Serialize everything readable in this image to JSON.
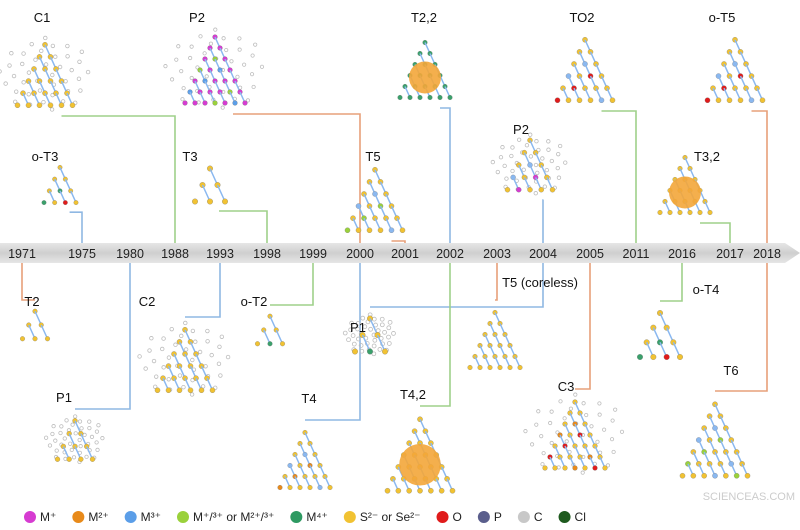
{
  "timeline": {
    "years": [
      "1971",
      "1975",
      "1980",
      "1988",
      "1993",
      "1998",
      "1999",
      "2000",
      "2001",
      "2002",
      "2003",
      "2004",
      "2005",
      "2011",
      "2016",
      "2017",
      "2018"
    ]
  },
  "clusters_above": [
    {
      "label": "C1",
      "year": "1988",
      "type": "C",
      "colors": [
        "#e88a1a",
        "#f1c232"
      ]
    },
    {
      "label": "P2",
      "year": "2000",
      "type": "P",
      "colors": [
        "#9ad13b",
        "#d63bd1",
        "#5b9ee8"
      ]
    },
    {
      "label": "T2,2",
      "year": "2002",
      "type": "Tcore",
      "colors": [
        "#f1c232",
        "#3aa06b"
      ]
    },
    {
      "label": "TO2",
      "year": "2011",
      "type": "T",
      "colors": [
        "#8ab8f0",
        "#f1c232",
        "#e01b1b"
      ]
    },
    {
      "label": "o-T5",
      "year": "2018",
      "type": "T",
      "colors": [
        "#8ab8f0",
        "#f1c232",
        "#e01b1b"
      ]
    },
    {
      "label": "o-T3",
      "year": "1975",
      "type": "T",
      "colors": [
        "#3aa06b",
        "#f1c232",
        "#e01b1b"
      ]
    },
    {
      "label": "T3",
      "year": "1998",
      "type": "T",
      "colors": [
        "#8ab8f0",
        "#f1c232"
      ]
    },
    {
      "label": "T5",
      "year": "2001",
      "type": "T",
      "colors": [
        "#8ab8f0",
        "#f1c232",
        "#9ad13b"
      ]
    },
    {
      "label": "P2",
      "year": "2004",
      "type": "P",
      "colors": [
        "#8ab8f0",
        "#f1c232",
        "#d63bd1"
      ]
    },
    {
      "label": "T3,2",
      "year": "2017",
      "type": "Tcore",
      "colors": [
        "#8ab8f0",
        "#f1c232"
      ]
    }
  ],
  "clusters_below": [
    {
      "label": "T2",
      "year": "1971",
      "type": "T",
      "colors": [
        "#3aa06b",
        "#f1c232"
      ]
    },
    {
      "label": "C2",
      "year": "1993",
      "type": "C",
      "colors": [
        "#e88a1a",
        "#f1c232"
      ]
    },
    {
      "label": "o-T2",
      "year": "1999",
      "type": "T",
      "colors": [
        "#3aa06b",
        "#f1c232",
        "#e01b1b"
      ]
    },
    {
      "label": "T5 (coreless)",
      "year": "2003",
      "type": "T",
      "colors": [
        "#8ab8f0",
        "#f1c232"
      ]
    },
    {
      "label": "P1",
      "year": "2004",
      "type": "P",
      "colors": [
        "#3aa06b",
        "#f1c232",
        "#e88a1a"
      ]
    },
    {
      "label": "o-T4",
      "year": "2016",
      "type": "T",
      "colors": [
        "#3aa06b",
        "#f1c232",
        "#e01b1b"
      ]
    },
    {
      "label": "T6",
      "year": "2018",
      "type": "T",
      "colors": [
        "#8ab8f0",
        "#f1c232",
        "#9ad13b"
      ]
    },
    {
      "label": "T4",
      "year": "2000",
      "type": "T",
      "colors": [
        "#8ab8f0",
        "#f1c232",
        "#e88a1a"
      ]
    },
    {
      "label": "T4,2",
      "year": "2002",
      "type": "Tcore",
      "colors": [
        "#8ab8f0",
        "#f1c232"
      ]
    },
    {
      "label": "C3",
      "year": "2005",
      "type": "C",
      "colors": [
        "#e88a1a",
        "#f1c232",
        "#e01b1b"
      ]
    },
    {
      "label": "P1",
      "year": "1980",
      "type": "P",
      "colors": [
        "#e88a1a",
        "#f1c232"
      ]
    }
  ],
  "legend": [
    {
      "label": "M⁺",
      "color": "#d63bd1"
    },
    {
      "label": "M²⁺",
      "color": "#e88a1a"
    },
    {
      "label": "M³⁺",
      "color": "#5b9ee8"
    },
    {
      "label": "M⁺/³⁺ or M²⁺/³⁺",
      "color": "#9ad13b"
    },
    {
      "label": "M⁴⁺",
      "color": "#2e9a62"
    },
    {
      "label": "S²⁻ or Se²⁻",
      "color": "#f1c232"
    },
    {
      "label": "O",
      "color": "#e01b1b"
    },
    {
      "label": "P",
      "color": "#5a5e8c"
    },
    {
      "label": "C",
      "color": "#c8c8c8"
    },
    {
      "label": "Cl",
      "color": "#1e5a1e"
    }
  ],
  "watermark": "SCIENCEAS.COM",
  "connector_colors": {
    "green": "#9fd08a",
    "orange": "#e7a07a",
    "blue": "#8fb8e3"
  }
}
